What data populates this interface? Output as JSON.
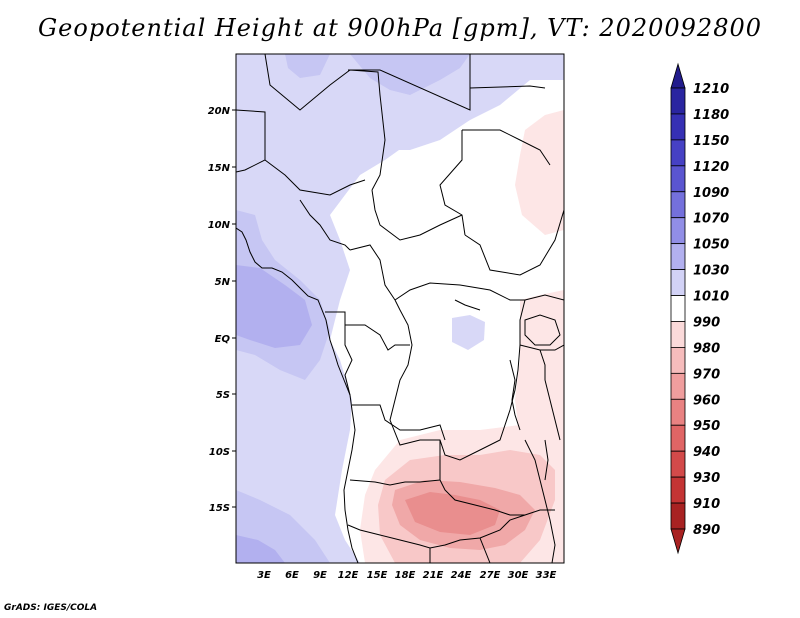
{
  "title": "Geopotential Height at 900hPa [gpm], VT: 2020092800",
  "credit": "GrADS: IGES/COLA",
  "lat_labels": [
    "20N",
    "15N",
    "10N",
    "5N",
    "EQ",
    "5S",
    "10S",
    "15S"
  ],
  "lon_labels": [
    "3E",
    "6E",
    "9E",
    "12E",
    "15E",
    "18E",
    "21E",
    "24E",
    "27E",
    "30E",
    "33E"
  ],
  "colorbar": {
    "levels": [
      "1210",
      "1180",
      "1150",
      "1120",
      "1090",
      "1070",
      "1050",
      "1030",
      "1010",
      "990",
      "980",
      "970",
      "960",
      "950",
      "940",
      "930",
      "910",
      "890"
    ],
    "colors": [
      "#221c8c",
      "#2a25a0",
      "#3630b4",
      "#4641c4",
      "#5a55d0",
      "#7470dc",
      "#918ee6",
      "#b2b0ef",
      "#d2d2f6",
      "#ffffff",
      "#fbdada",
      "#f6bcbc",
      "#f09e9e",
      "#e98282",
      "#e06565",
      "#d34a4a",
      "#c43434",
      "#a82222"
    ]
  },
  "map": {
    "lon_range": [
      0,
      35
    ],
    "lat_range": [
      -20,
      25
    ],
    "colors": {
      "h1070": "#b2b0ef",
      "h1050": "#c6c6f3",
      "h1030": "#d8d8f7",
      "h1010": "#ffffff",
      "h990": "#fde6e6",
      "h980": "#f8c8c8",
      "h970": "#f0a8a8",
      "h960": "#e98e8e",
      "h950": "#f5b5b5"
    }
  }
}
